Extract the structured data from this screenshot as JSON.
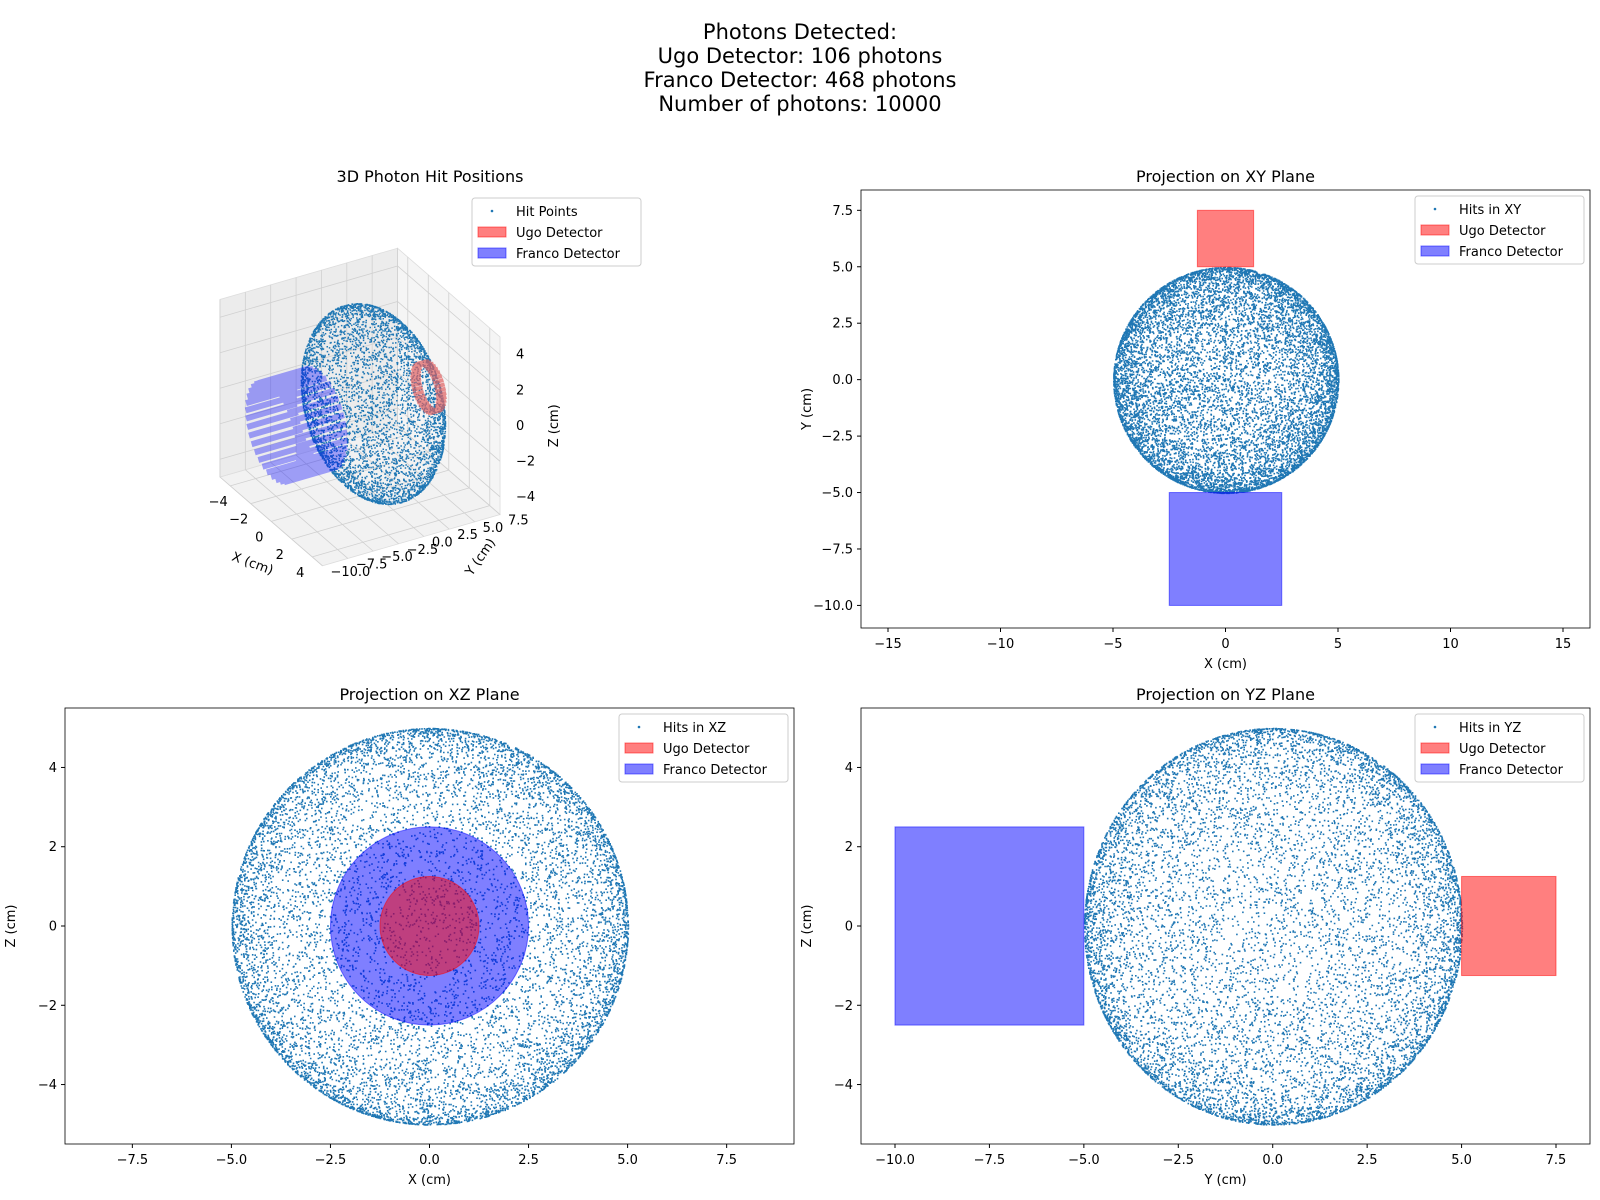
{
  "suptitle": {
    "line1": "Photons Detected:",
    "line2": "Ugo Detector: 106 photons",
    "line3": "Franco Detector: 468 photons",
    "line4": "Number of photons: 10000"
  },
  "colors": {
    "points": "#1f77b4",
    "ugo": "#ff0000",
    "franco": "#0000ff"
  },
  "chart_data": [
    {
      "type": "scatter",
      "title": "3D Photon Hit Positions",
      "xlabel": "X (cm)",
      "ylabel": "Y (cm)",
      "zlabel": "Z (cm)",
      "xlim": [
        -5,
        5
      ],
      "ylim": [
        -10,
        7.5
      ],
      "zlim": [
        -5,
        5
      ],
      "xticks": [
        "−4",
        "−2",
        "0",
        "2",
        "4"
      ],
      "yticks": [
        "−10.0",
        "−7.5",
        "−5.0",
        "−2.5",
        "0.0",
        "2.5",
        "5.0",
        "7.5"
      ],
      "zticks": [
        "−4",
        "−2",
        "0",
        "2",
        "4"
      ],
      "legend": [
        "Hit Points",
        "Ugo Detector",
        "Franco Detector"
      ],
      "legend_loc": "upper right",
      "sphere_radius": 5,
      "n_points": 10000
    },
    {
      "type": "scatter",
      "title": "Projection on XY Plane",
      "xlabel": "X (cm)",
      "ylabel": "Y (cm)",
      "xlim": [
        -16.2,
        16.2
      ],
      "ylim": [
        -11,
        8.4
      ],
      "xticks": [
        -15,
        -10,
        -5,
        0,
        5,
        10,
        15
      ],
      "yticks": [
        -10.0,
        -7.5,
        -5.0,
        -2.5,
        0.0,
        2.5,
        5.0,
        7.5
      ],
      "legend": [
        "Hits in XY",
        "Ugo Detector",
        "Franco Detector"
      ],
      "legend_loc": "upper right",
      "detectors": [
        {
          "name": "Ugo Detector",
          "x": [
            -1.25,
            1.25
          ],
          "y": [
            5,
            7.5
          ]
        },
        {
          "name": "Franco Detector",
          "x": [
            -2.5,
            2.5
          ],
          "y": [
            -10,
            -5
          ]
        }
      ]
    },
    {
      "type": "scatter",
      "title": "Projection on XZ Plane",
      "xlabel": "X (cm)",
      "ylabel": "Z (cm)",
      "xlim": [
        -9.2,
        9.2
      ],
      "ylim": [
        -5.5,
        5.5
      ],
      "xticks": [
        -7.5,
        -5.0,
        -2.5,
        0.0,
        2.5,
        5.0,
        7.5
      ],
      "yticks": [
        -4,
        -2,
        0,
        2,
        4
      ],
      "legend": [
        "Hits in XZ",
        "Ugo Detector",
        "Franco Detector"
      ],
      "legend_loc": "upper right",
      "detectors": [
        {
          "name": "Franco Detector",
          "shape": "circle",
          "radius": 2.5
        },
        {
          "name": "Ugo Detector",
          "shape": "circle",
          "radius": 1.25
        }
      ]
    },
    {
      "type": "scatter",
      "title": "Projection on YZ Plane",
      "xlabel": "Y (cm)",
      "ylabel": "Z (cm)",
      "xlim": [
        -10.9,
        8.4
      ],
      "ylim": [
        -5.5,
        5.5
      ],
      "xticks": [
        -10.0,
        -7.5,
        -5.0,
        -2.5,
        0.0,
        2.5,
        5.0,
        7.5
      ],
      "yticks": [
        -4,
        -2,
        0,
        2,
        4
      ],
      "legend": [
        "Hits in YZ",
        "Ugo Detector",
        "Franco Detector"
      ],
      "legend_loc": "upper right",
      "detectors": [
        {
          "name": "Franco Detector",
          "x": [
            -10,
            -5
          ],
          "y": [
            -2.5,
            2.5
          ]
        },
        {
          "name": "Ugo Detector",
          "x": [
            5,
            7.5
          ],
          "y": [
            -1.25,
            1.25
          ]
        }
      ]
    }
  ]
}
